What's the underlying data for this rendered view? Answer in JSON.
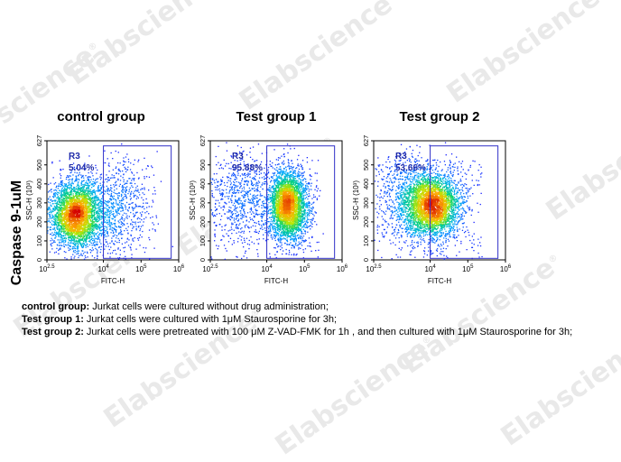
{
  "watermark": {
    "text": "Elabscience",
    "mark": "®"
  },
  "row_label": "Caspase 9-1uM",
  "chart_data": [
    {
      "type": "scatter",
      "title": "control group",
      "xlabel": "FITC-H",
      "ylabel": "SSC-H (10³)",
      "x_scale": "log",
      "xlim": [
        316.2,
        1000000
      ],
      "ylim": [
        0,
        627
      ],
      "x_tick_labels": [
        "10^2.5",
        "10^4",
        "10^5",
        "10^6"
      ],
      "y_tick_labels": [
        "0",
        "100",
        "200",
        "300",
        "400",
        "500",
        "627"
      ],
      "gate": {
        "name": "R3",
        "percent": "5.04%",
        "x_range": [
          10000,
          631000
        ],
        "y_range": [
          0,
          600
        ]
      },
      "population": {
        "center_log_x": 3.25,
        "center_y": 240,
        "spread_log_x": 0.34,
        "spread_y": 90,
        "tail_log_x": 4.3,
        "events": 4200
      }
    },
    {
      "type": "scatter",
      "title": "Test group 1",
      "xlabel": "FITC-H",
      "ylabel": "SSC-H (10³)",
      "x_scale": "log",
      "xlim": [
        316.2,
        1000000
      ],
      "ylim": [
        0,
        627
      ],
      "x_tick_labels": [
        "10^2.5",
        "10^4",
        "10^5",
        "10^6"
      ],
      "y_tick_labels": [
        "0",
        "100",
        "200",
        "300",
        "400",
        "500",
        "627"
      ],
      "gate": {
        "name": "R3",
        "percent": "95.88%",
        "x_range": [
          10000,
          631000
        ],
        "y_range": [
          0,
          600
        ]
      },
      "population": {
        "center_log_x": 4.55,
        "center_y": 290,
        "spread_log_x": 0.26,
        "spread_y": 95,
        "tail_log_x": 3.3,
        "events": 4200
      }
    },
    {
      "type": "scatter",
      "title": "Test group 2",
      "xlabel": "FITC-H",
      "ylabel": "SSC-H (10³)",
      "x_scale": "log",
      "xlim": [
        316.2,
        1000000
      ],
      "ylim": [
        0,
        627
      ],
      "x_tick_labels": [
        "10^2.5",
        "10^4",
        "10^5",
        "10^6"
      ],
      "y_tick_labels": [
        "0",
        "100",
        "200",
        "300",
        "400",
        "500",
        "627"
      ],
      "gate": {
        "name": "R3",
        "percent": "53.66%",
        "x_range": [
          10000,
          631000
        ],
        "y_range": [
          0,
          600
        ]
      },
      "population": {
        "center_log_x": 4.05,
        "center_y": 290,
        "spread_log_x": 0.38,
        "spread_y": 85,
        "tail_log_x": 3.4,
        "events": 4200
      }
    }
  ],
  "legend": [
    {
      "label": "control group:",
      "text": " Jurkat cells were cultured without drug administration;"
    },
    {
      "label": "Test group 1:",
      "text": " Jurkat cells were cultured with 1μM Staurosporine for 3h;"
    },
    {
      "label": "Test group 2:",
      "text": " Jurkat cells  were pretreated with 100 μM Z-VAD-FMK for 1h , and then cultured with 1μM Staurosporine for 3h;"
    }
  ],
  "colors": {
    "gate": "#3030c8",
    "gate_text": "#1e2aa8",
    "density_low": "#1a1aff",
    "density_high": "#d40000"
  }
}
